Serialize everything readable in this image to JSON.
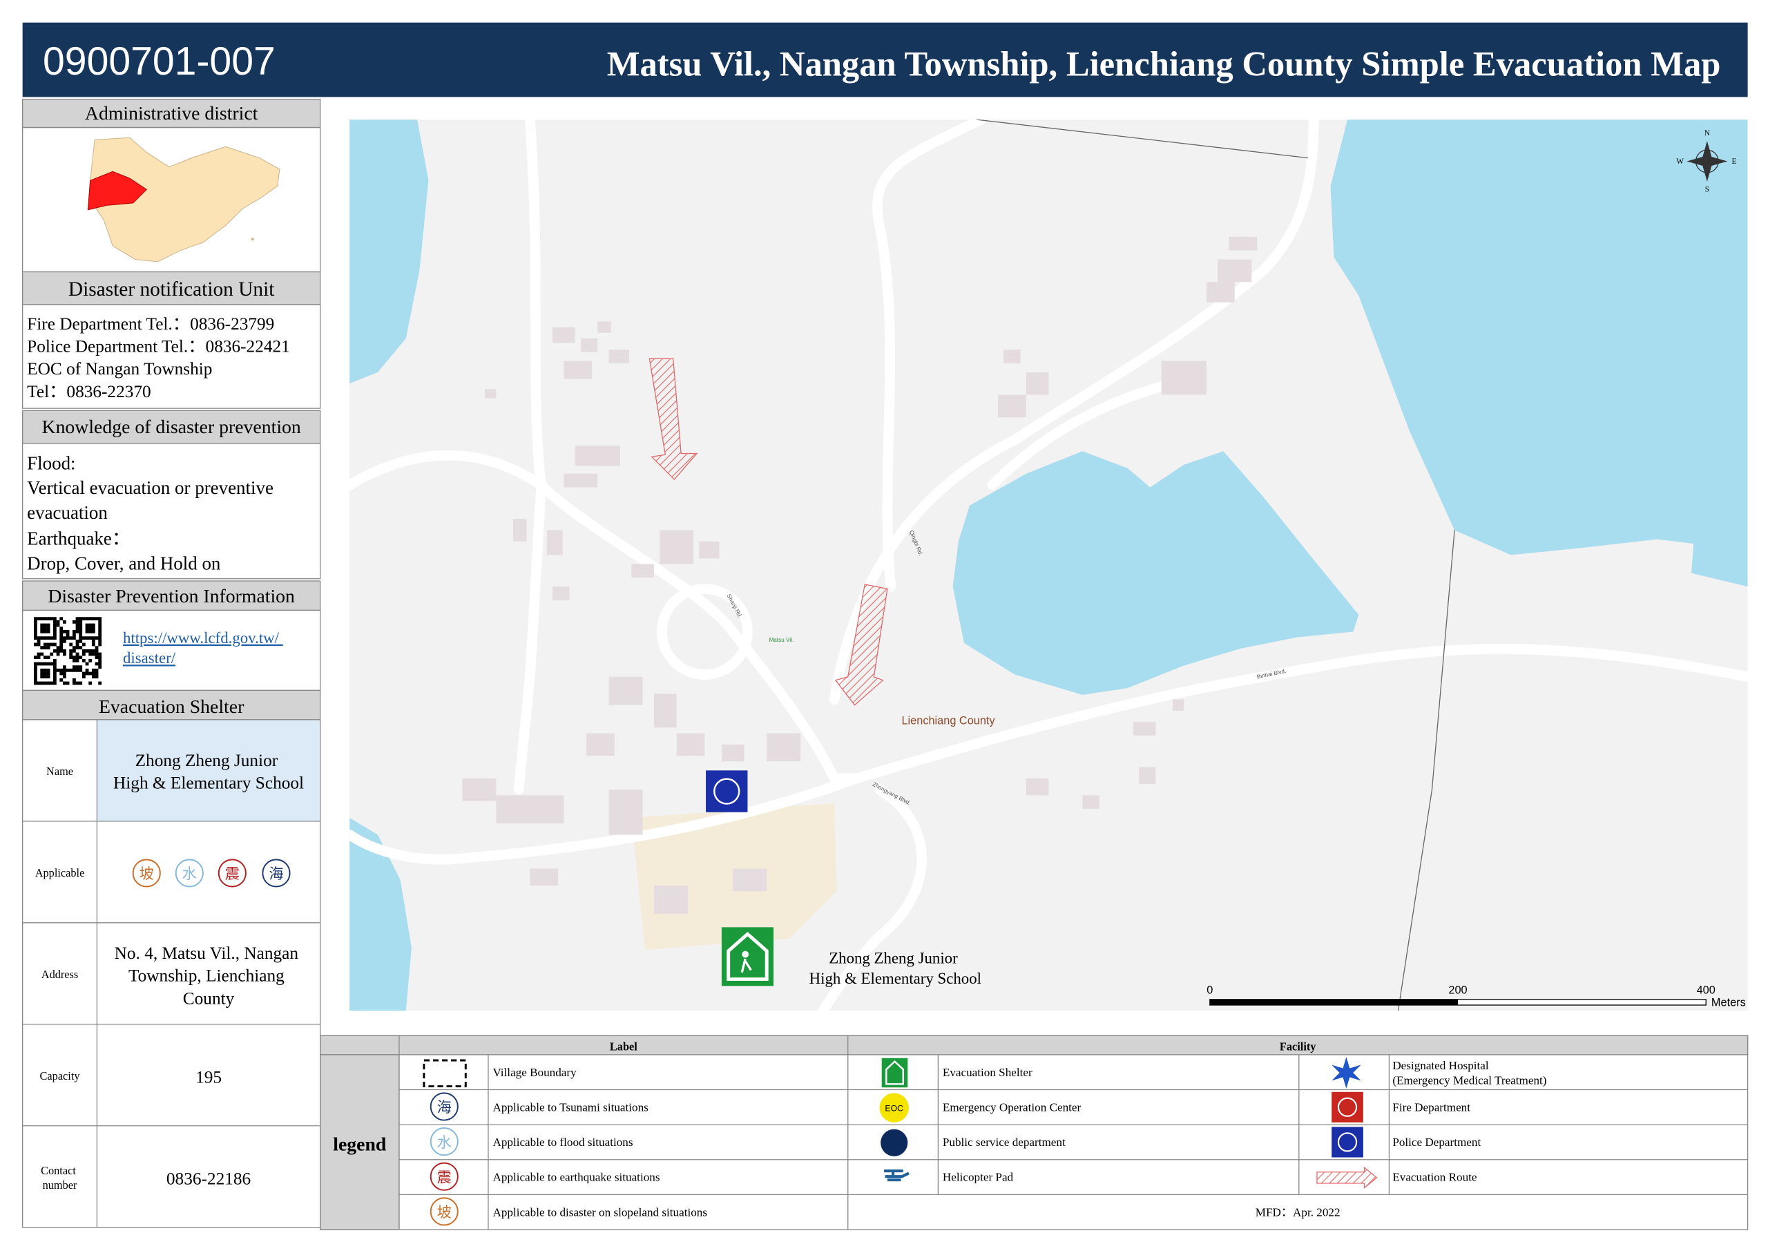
{
  "header": {
    "code": "0900701-007",
    "title": "Matsu Vil., Nangan Township, Lienchiang County Simple Evacuation Map"
  },
  "sidebar": {
    "administrative_district": {
      "heading": "Administrative district"
    },
    "notification": {
      "heading": "Disaster notification Unit",
      "lines": [
        "Fire Department Tel.：0836-23799",
        "Police Department Tel.：0836-22421",
        "EOC of Nangan Township",
        "Tel：0836-22370"
      ]
    },
    "knowledge": {
      "heading": "Knowledge of disaster prevention",
      "lines": [
        "Flood:",
        "Vertical evacuation or preventive",
        "evacuation",
        "Earthquake：",
        "Drop, Cover, and Hold on"
      ]
    },
    "info": {
      "heading": "Disaster Prevention Information",
      "link_lines": [
        "https://www.lcfd.gov.tw/",
        "disaster/"
      ]
    },
    "shelter": {
      "heading": "Evacuation Shelter",
      "rows": [
        {
          "label_lines": [
            "Name"
          ],
          "lines": [
            "Zhong Zheng Junior",
            "High & Elementary School"
          ]
        },
        {
          "label_lines": [
            "Applicable"
          ],
          "icons": [
            "坡",
            "水",
            "震",
            "海"
          ]
        },
        {
          "label_lines": [
            "Address"
          ],
          "lines": [
            "No. 4, Matsu Vil., Nangan",
            "Township, Lienchiang",
            "County"
          ]
        },
        {
          "label_lines": [
            "Capacity"
          ],
          "lines": [
            "195"
          ]
        },
        {
          "label_lines": [
            "Contact",
            "number"
          ],
          "lines": [
            "0836-22186"
          ]
        }
      ]
    }
  },
  "map": {
    "labels": [
      "Lienchiang County",
      "Matsu Vil.",
      "Zhongyang Blvd.",
      "Binhai Blvd.",
      "Qingbi Rd.",
      "Shanji Rd."
    ],
    "shelter_label": [
      "Zhong Zheng Junior",
      "High & Elementary School"
    ],
    "compass": {
      "n": "N",
      "s": "S",
      "e": "E",
      "w": "W"
    },
    "scale": {
      "ticks": [
        0,
        200,
        400
      ],
      "unit": "Meters"
    }
  },
  "legend": {
    "title": "legend",
    "label_heading": "Label",
    "facility_heading": "Facility",
    "labels": [
      {
        "text": "Village Boundary"
      },
      {
        "icon": "海",
        "text": "Applicable to Tsunami situations"
      },
      {
        "icon": "水",
        "text": "Applicable to flood situations"
      },
      {
        "icon": "震",
        "text": "Applicable to earthquake situations"
      },
      {
        "icon": "坡",
        "text": "Applicable to disaster on slopeland situations"
      }
    ],
    "eoc_icon": "EOC",
    "facilities": [
      {
        "lines": [
          "Evacuation Shelter"
        ]
      },
      {
        "lines": [
          "Designated Hospital",
          "(Emergency Medical Treatment)"
        ]
      },
      {
        "lines": [
          "Emergency Operation Center"
        ]
      },
      {
        "lines": [
          "Fire Department"
        ]
      },
      {
        "lines": [
          "Public service department"
        ]
      },
      {
        "lines": [
          "Police Department"
        ]
      },
      {
        "lines": [
          "Helicopter Pad"
        ]
      },
      {
        "lines": [
          "Evacuation Route"
        ]
      }
    ],
    "mfd": "MFD：Apr. 2022"
  }
}
